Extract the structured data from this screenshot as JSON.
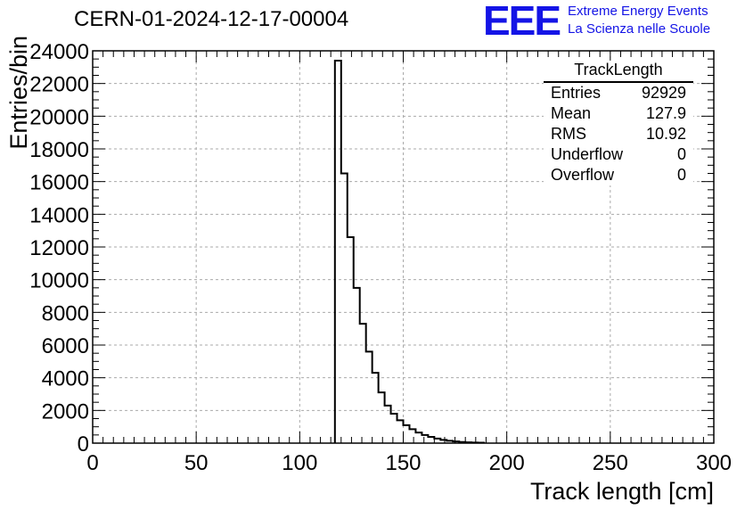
{
  "header": {
    "run_title": "CERN-01-2024-12-17-00004",
    "logo_text": "EEE",
    "logo_line1": "Extreme Energy Events",
    "logo_line2": "La Scienza nelle Scuole",
    "logo_color": "#1414e6"
  },
  "stats_box": {
    "title": "TrackLength",
    "rows": [
      {
        "label": "Entries",
        "value": "92929"
      },
      {
        "label": "Mean",
        "value": "127.9"
      },
      {
        "label": "RMS",
        "value": "10.92"
      },
      {
        "label": "Underflow",
        "value": "0"
      },
      {
        "label": "Overflow",
        "value": "0"
      }
    ]
  },
  "chart_data": {
    "type": "bar",
    "histogram": true,
    "xlabel": "Track length [cm]",
    "ylabel": "Entries/bin",
    "xlim": [
      0,
      300
    ],
    "ylim": [
      0,
      24000
    ],
    "xticks": [
      "0",
      "50",
      "100",
      "150",
      "200",
      "250",
      "300"
    ],
    "yticks": [
      "0",
      "2000",
      "4000",
      "6000",
      "8000",
      "10000",
      "12000",
      "14000",
      "16000",
      "18000",
      "20000",
      "22000",
      "24000"
    ],
    "grid": true,
    "bin_width": 3,
    "bin_edges_start": 117,
    "values": [
      23400,
      16500,
      12600,
      9500,
      7300,
      5600,
      4300,
      3100,
      2300,
      1800,
      1400,
      1100,
      850,
      650,
      500,
      380,
      280,
      200,
      140,
      100,
      70,
      50,
      35,
      25
    ]
  }
}
